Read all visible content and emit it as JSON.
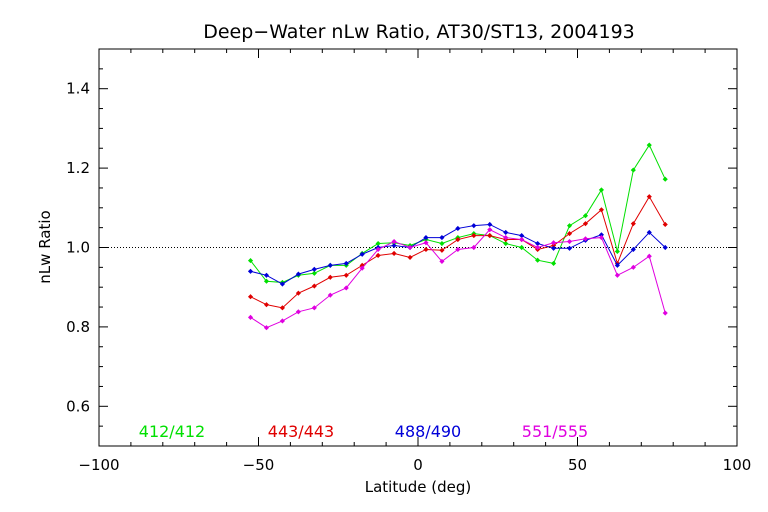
{
  "chart_data": {
    "type": "line",
    "title": "Deep−Water nLw Ratio, AT30/ST13, 2004193",
    "xlabel": "Latitude (deg)",
    "ylabel": "nLw Ratio",
    "xlim": [
      -100,
      100
    ],
    "ylim": [
      0.5,
      1.5
    ],
    "x_ticks": [
      -100,
      -50,
      0,
      50,
      100
    ],
    "x_tick_labels": [
      "−100",
      "−50",
      "0",
      "50",
      "100"
    ],
    "y_ticks": [
      0.6,
      0.8,
      1.0,
      1.2,
      1.4
    ],
    "y_tick_labels": [
      "0.6",
      "0.8",
      "1.0",
      "1.2",
      "1.4"
    ],
    "reference_line": 1.0,
    "grid": false,
    "legend_position": "bottom",
    "x": [
      -52.5,
      -47.5,
      -42.5,
      -37.5,
      -32.5,
      -27.5,
      -22.5,
      -17.5,
      -12.5,
      -7.5,
      -2.5,
      2.5,
      7.5,
      12.5,
      17.5,
      22.5,
      27.5,
      32.5,
      37.5,
      42.5,
      47.5,
      52.5,
      57.5,
      62.5,
      67.5,
      72.5,
      77.5
    ],
    "series": [
      {
        "name": "412/412",
        "color": "#00e000",
        "values": [
          0.967,
          0.915,
          0.912,
          0.93,
          0.935,
          0.955,
          0.955,
          0.985,
          1.01,
          1.012,
          1.005,
          1.02,
          1.01,
          1.025,
          1.035,
          1.03,
          1.01,
          1.0,
          0.968,
          0.96,
          1.055,
          1.08,
          1.145,
          0.99,
          1.195,
          1.258,
          1.172
        ]
      },
      {
        "name": "443/443",
        "color": "#e00000",
        "values": [
          0.876,
          0.856,
          0.848,
          0.885,
          0.903,
          0.925,
          0.93,
          0.955,
          0.98,
          0.985,
          0.975,
          0.995,
          0.993,
          1.02,
          1.03,
          1.03,
          1.02,
          1.02,
          0.995,
          1.005,
          1.035,
          1.06,
          1.095,
          0.96,
          1.06,
          1.128,
          1.058
        ]
      },
      {
        "name": "488/490",
        "color": "#0000d8",
        "values": [
          0.94,
          0.93,
          0.908,
          0.933,
          0.945,
          0.955,
          0.96,
          0.983,
          1.0,
          1.005,
          1.0,
          1.025,
          1.025,
          1.048,
          1.055,
          1.058,
          1.038,
          1.03,
          1.01,
          0.998,
          0.998,
          1.018,
          1.032,
          0.955,
          0.995,
          1.038,
          1.0
        ]
      },
      {
        "name": "551/555",
        "color": "#e000e0",
        "values": [
          0.824,
          0.798,
          0.815,
          0.838,
          0.848,
          0.88,
          0.898,
          0.948,
          0.995,
          1.015,
          1.0,
          1.012,
          0.965,
          0.995,
          1.0,
          1.045,
          1.025,
          1.02,
          1.0,
          1.012,
          1.015,
          1.022,
          1.025,
          0.93,
          0.95,
          0.978,
          0.835
        ]
      }
    ]
  }
}
